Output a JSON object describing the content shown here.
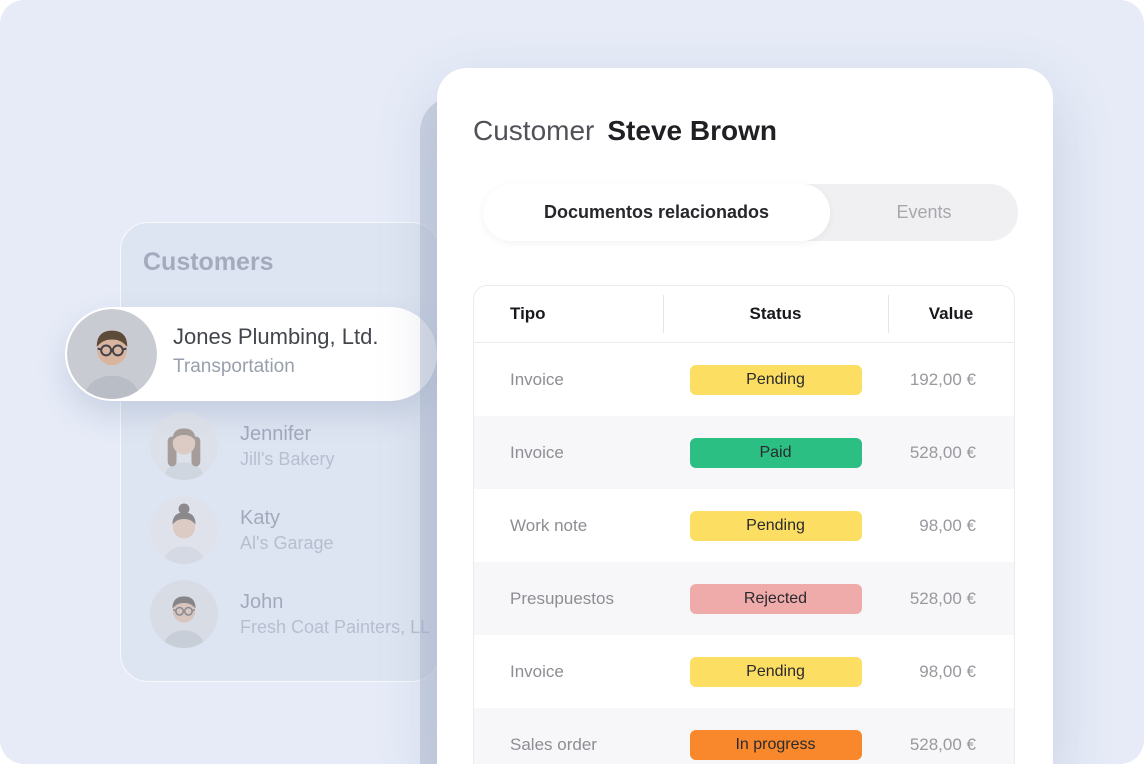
{
  "customers_panel": {
    "title": "Customers",
    "selected": {
      "name": "Jones Plumbing, Ltd.",
      "subtitle": "Transportation",
      "avatar": "man-short-hair-glasses-avatar"
    },
    "items": [
      {
        "name": "Jennifer",
        "company": "Jill's Bakery",
        "avatar": "woman-long-hair-avatar"
      },
      {
        "name": "Katy",
        "company": "Al's Garage",
        "avatar": "woman-hair-bun-avatar"
      },
      {
        "name": "John",
        "company": "Fresh Coat Painters, LL",
        "avatar": "man-glasses-crossed-arms-avatar"
      }
    ]
  },
  "detail_panel": {
    "title_label": "Customer",
    "customer_name": "Steve Brown",
    "tabs": [
      {
        "label": "Documentos relacionados",
        "active": true
      },
      {
        "label": "Events",
        "active": false
      }
    ],
    "table": {
      "columns": [
        "Tipo",
        "Status",
        "Value"
      ],
      "rows": [
        {
          "tipo": "Invoice",
          "status": "Pending",
          "status_color": "#fbde62",
          "value": "192,00 €"
        },
        {
          "tipo": "Invoice",
          "status": "Paid",
          "status_color": "#2bbf83",
          "value": "528,00 €"
        },
        {
          "tipo": "Work note",
          "status": "Pending",
          "status_color": "#fbde62",
          "value": "98,00 €"
        },
        {
          "tipo": "Presupuestos",
          "status": "Rejected",
          "status_color": "#efabaa",
          "value": "528,00 €"
        },
        {
          "tipo": "Invoice",
          "status": "Pending",
          "status_color": "#fbde62",
          "value": "98,00 €"
        },
        {
          "tipo": "Sales order",
          "status": "In progress",
          "status_color": "#f8882b",
          "value": "528,00 €"
        }
      ]
    }
  },
  "colors": {
    "page_bg": "#e6ebf7",
    "left_card_bg": "#dee5f2",
    "backdrop_panel": "#c9d1e1",
    "badge_pending": "#fbde62",
    "badge_paid": "#2bbf83",
    "badge_rejected": "#efabaa",
    "badge_in_progress": "#f8882b"
  }
}
